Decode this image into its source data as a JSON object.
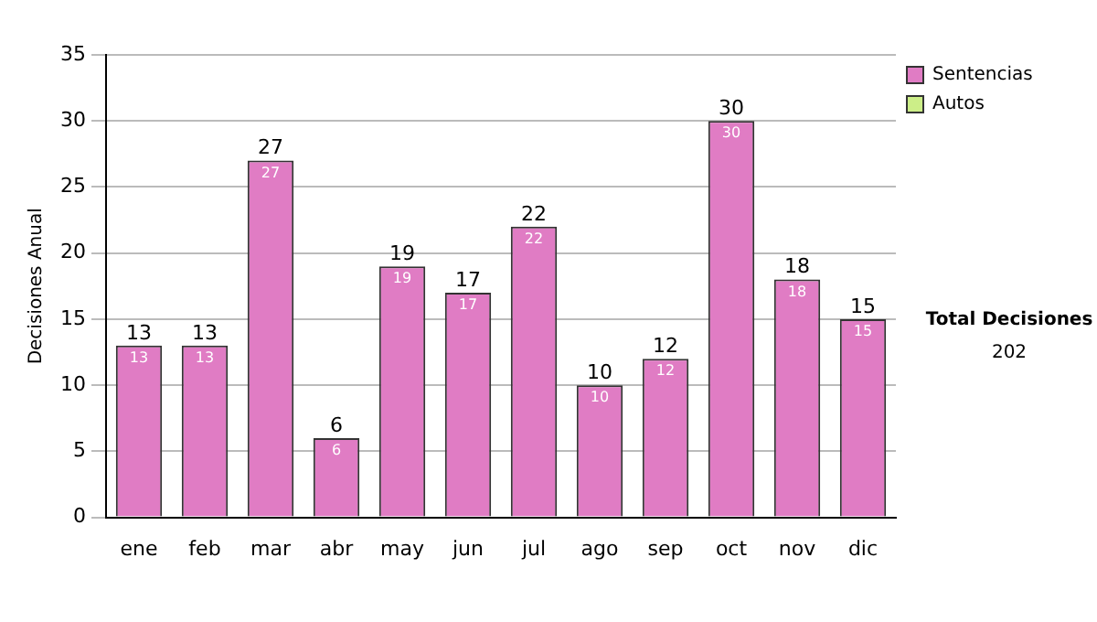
{
  "chart_data": {
    "type": "bar",
    "stacked": true,
    "ylabel": "Decisiones Anual",
    "categories": [
      "ene",
      "feb",
      "mar",
      "abr",
      "may",
      "jun",
      "jul",
      "ago",
      "sep",
      "oct",
      "nov",
      "dic"
    ],
    "series": [
      {
        "name": "Sentencias",
        "color": "#e07cc4",
        "values": [
          13,
          13,
          27,
          6,
          19,
          17,
          22,
          10,
          12,
          30,
          18,
          15
        ],
        "value_labels": [
          "13",
          "13",
          "27",
          "6",
          "19",
          "17",
          "22",
          "10",
          "12",
          "30",
          "18",
          "15"
        ]
      },
      {
        "name": "Autos",
        "color": "#ccee88",
        "values": [
          0,
          0,
          0,
          0,
          0,
          0,
          0,
          0,
          0,
          0,
          0,
          0
        ]
      }
    ],
    "totals": [
      "13",
      "13",
      "27",
      "6",
      "19",
      "17",
      "22",
      "10",
      "12",
      "30",
      "18",
      "15"
    ],
    "ylim": [
      0,
      35
    ],
    "yticks": [
      0,
      5,
      10,
      15,
      20,
      25,
      30,
      35
    ],
    "grid": "y",
    "legend": "right",
    "annotations": [
      "Total Decisiones",
      "202"
    ]
  }
}
